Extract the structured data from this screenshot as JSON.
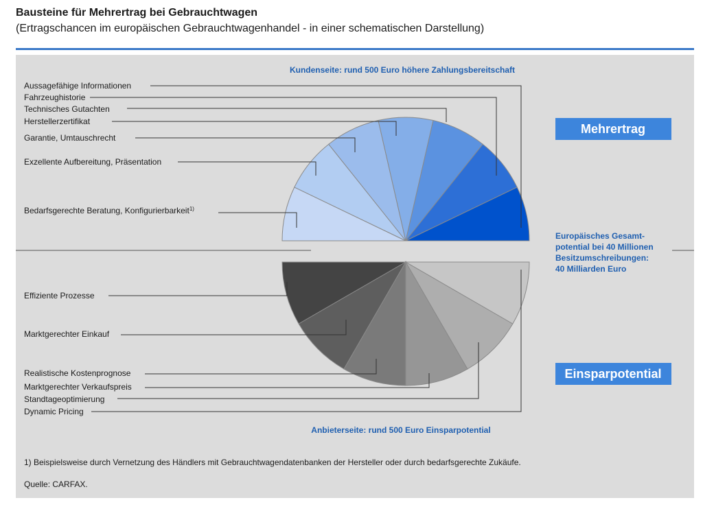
{
  "header": {
    "title": "Bausteine für Mehrertrag bei Gebrauchtwagen",
    "subtitle": "(Ertragschancen im europäischen Gebrauchtwagenhandel - in einer schematischen Darstellung)"
  },
  "top": {
    "heading": "Kundenseite: rund 500 Euro höhere Zahlungsbereitschaft",
    "badge": "Mehrertrag",
    "labels": [
      "Aussagefähige Informationen",
      "Fahrzeughistorie",
      "Technisches Gutachten",
      "Herstellerzertifikat",
      "Garantie, Umtauschrecht",
      "Exzellente Aufbereitung, Präsentation",
      "Bedarfsgerechte Beratung, Konfigurierbarkeit"
    ],
    "footnote_mark": "1)",
    "slice_colors": [
      "#c6d8f5",
      "#b2cdf2",
      "#9bbcec",
      "#84aee8",
      "#5b92e0",
      "#2d6fd6",
      "#0052cc"
    ]
  },
  "side_note": {
    "lines": [
      "Europäisches Gesamt-",
      "potential bei 40 Millionen",
      "Besitzumschreibungen:",
      "40 Milliarden Euro"
    ]
  },
  "bottom": {
    "heading": "Anbieterseite: rund 500 Euro Einsparpotential",
    "badge": "Einsparpotential",
    "labels": [
      "Effiziente Prozesse",
      "Marktgerechter Einkauf",
      "Realistische Kostenprognose",
      "Marktgerechter Verkaufspreis",
      "Standtageoptimierung",
      "Dynamic Pricing"
    ],
    "slice_colors": [
      "#444444",
      "#5e5e5e",
      "#7a7a7a",
      "#969696",
      "#aeaeae",
      "#c6c6c6"
    ]
  },
  "footnote": "1)  Beispielsweise durch Vernetzung des Händlers mit Gebrauchtwagendatenbanken der Hersteller oder durch bedarfsgerechte Zukäufe.",
  "source": "Quelle: CARFAX.",
  "colors": {
    "accent": "#3a78c8",
    "heading_blue": "#1f5fb0",
    "badge_blue": "#3d85dc",
    "panel": "#dcdcdc"
  }
}
